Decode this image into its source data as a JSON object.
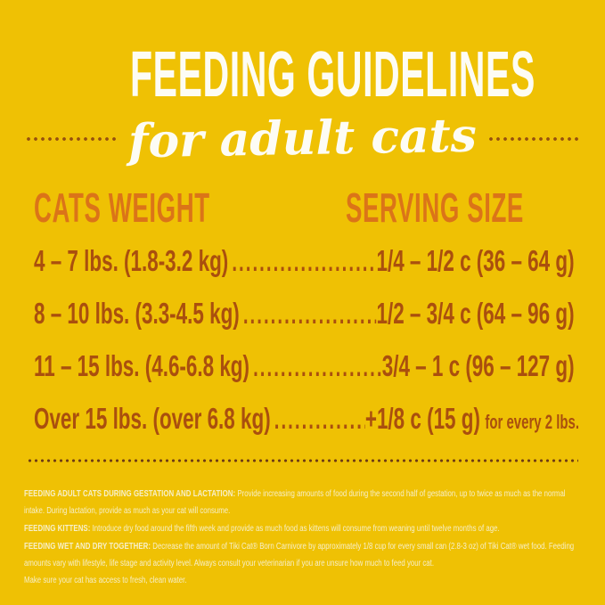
{
  "label": {
    "title": "FEEDING GUIDELINES",
    "subtitle": "for adult cats"
  },
  "table": {
    "columns": {
      "weight": "CATS WEIGHT",
      "serving": "SERVING SIZE"
    },
    "rows": [
      {
        "weight": "4 – 7 lbs. (1.8-3.2 kg)",
        "leader": "......................",
        "serving": "1/4 – 1/2 c (36 – 64 g)",
        "note": ""
      },
      {
        "weight": "8 – 10 lbs. (3.3-4.5 kg)",
        "leader": "......................",
        "serving": "1/2 – 3/4 c (64 – 96 g)",
        "note": ""
      },
      {
        "weight": "11 – 15 lbs. (4.6-6.8 kg)",
        "leader": "......................",
        "serving": "3/4 – 1 c (96 – 127 g)",
        "note": ""
      },
      {
        "weight": "Over 15 lbs. (over 6.8 kg)",
        "leader": "......................",
        "serving": "+1/8 c (15 g)",
        "note": "for every 2 lbs."
      }
    ]
  },
  "footnotes": [
    {
      "label": "FEEDING ADULT CATS DURING GESTATION AND LACTATION:",
      "text": "Provide increasing amounts of food during the second half of gestation, up to twice as much as the normal intake.  During lactation, provide as much as your cat will consume."
    },
    {
      "label": "FEEDING KITTENS:",
      "text": "Introduce dry food around the fifth week and provide as much food as kittens will consume from weaning until twelve months of age."
    },
    {
      "label": "FEEDING WET AND DRY TOGETHER:",
      "text": "Decrease the amount of Tiki Cat® Born Carnivore by approximately 1/8 cup for every small can (2.8-3 oz) of Tiki Cat® wet food. Feeding amounts vary with lifestyle, life stage and activity level.  Always consult your veterinarian if you are unsure how much to feed your cat.",
      "text2": "Make sure your cat has access to fresh, clean water."
    }
  ],
  "colors": {
    "background": "#EFC104",
    "heading_white": "#FDFCF4",
    "column_header_orange": "#DB7418",
    "row_text_brown": "#AA4F0E",
    "flank_dot_brown": "#96500F",
    "divider_dot_brown": "#6E3A13",
    "footnote_cream": "#F7EFC8"
  }
}
